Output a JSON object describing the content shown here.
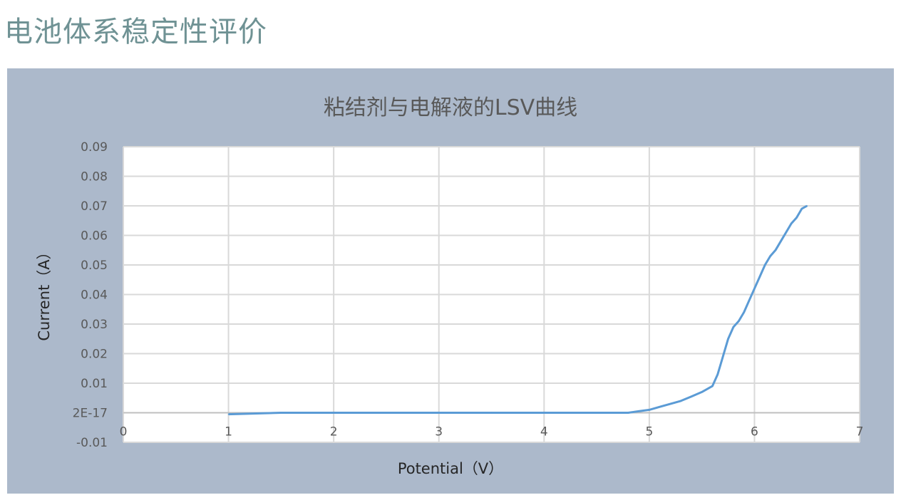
{
  "page": {
    "title": "电池体系稳定性评价"
  },
  "chart_data": {
    "type": "line",
    "title": "粘结剂与电解液的LSV曲线",
    "xlabel": "Potential（V）",
    "ylabel": "Current（A）",
    "xlim": [
      0,
      7
    ],
    "ylim": [
      -0.01,
      0.09
    ],
    "x_ticks": [
      "0",
      "1",
      "2",
      "3",
      "4",
      "5",
      "6",
      "7"
    ],
    "y_ticks": [
      "-0.01",
      "2E-17",
      "0.01",
      "0.02",
      "0.03",
      "0.04",
      "0.05",
      "0.06",
      "0.07",
      "0.08",
      "0.09"
    ],
    "grid": true,
    "legend": "none",
    "series_color": "#5b9bd5",
    "series": [
      {
        "x": [
          1.0,
          1.5,
          2.0,
          2.5,
          3.0,
          3.5,
          4.0,
          4.5,
          4.8,
          4.9,
          5.0,
          5.1,
          5.2,
          5.3,
          5.4,
          5.5,
          5.6,
          5.65,
          5.7,
          5.75,
          5.8,
          5.85,
          5.9,
          5.95,
          6.0,
          6.05,
          6.1,
          6.15,
          6.2,
          6.25,
          6.3,
          6.35,
          6.4,
          6.45,
          6.5
        ],
        "y": [
          -0.0005,
          0.0,
          0.0,
          0.0,
          0.0,
          0.0,
          0.0,
          0.0,
          0.0,
          0.0005,
          0.001,
          0.002,
          0.003,
          0.004,
          0.0055,
          0.007,
          0.009,
          0.013,
          0.019,
          0.025,
          0.029,
          0.031,
          0.034,
          0.038,
          0.042,
          0.046,
          0.05,
          0.053,
          0.055,
          0.058,
          0.061,
          0.064,
          0.066,
          0.069,
          0.07
        ]
      }
    ]
  }
}
